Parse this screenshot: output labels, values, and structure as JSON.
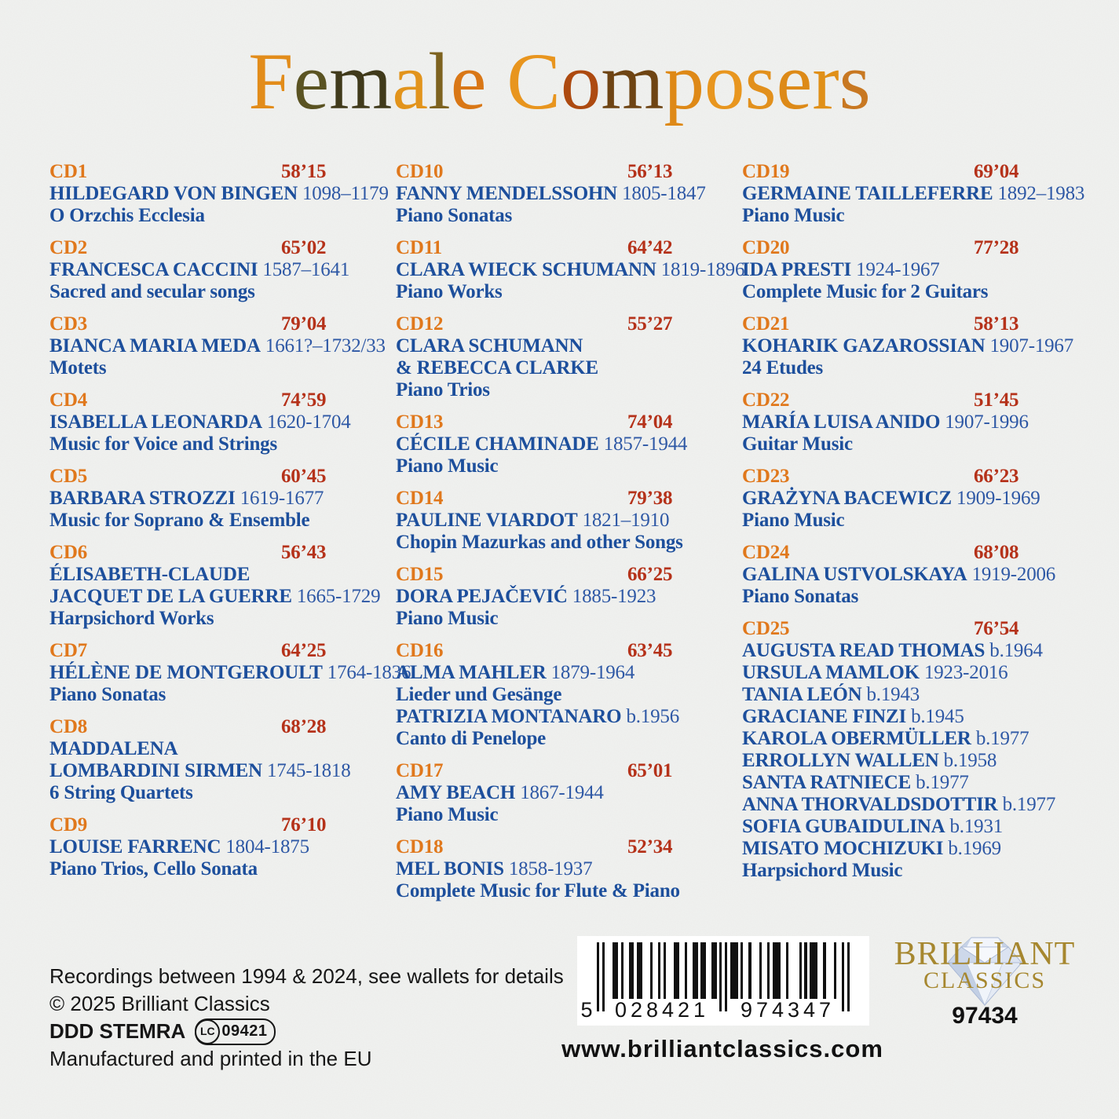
{
  "title": {
    "text": "Female Composers",
    "letter_colors": [
      "#E28C1A",
      "#5A5322",
      "#403A1B",
      "#E2941C",
      "#7D621F",
      "#D97716",
      "",
      "#E8951E",
      "#AD4A10",
      "#6E4413",
      "#DE8917",
      "#E8961F",
      "#E2901C",
      "#DD8A18",
      "#E09018",
      "#C87822"
    ]
  },
  "columns": [
    [
      {
        "num": "CD1",
        "dur": "58’15",
        "lines": [
          {
            "b": "HILDEGARD VON BINGEN",
            "r": "1098–1179"
          },
          {
            "w": "O Orzchis Ecclesia"
          }
        ]
      },
      {
        "num": "CD2",
        "dur": "65’02",
        "lines": [
          {
            "b": "FRANCESCA CACCINI",
            "r": "1587–1641"
          },
          {
            "w": "Sacred and secular songs"
          }
        ]
      },
      {
        "num": "CD3",
        "dur": "79’04",
        "lines": [
          {
            "b": "BIANCA MARIA MEDA",
            "r": "1661?–1732/33"
          },
          {
            "w": "Motets"
          }
        ]
      },
      {
        "num": "CD4",
        "dur": "74’59",
        "lines": [
          {
            "b": "ISABELLA LEONARDA",
            "r": "1620-1704"
          },
          {
            "w": "Music for Voice and Strings"
          }
        ]
      },
      {
        "num": "CD5",
        "dur": "60’45",
        "lines": [
          {
            "b": "BARBARA STROZZI",
            "r": "1619-1677"
          },
          {
            "w": "Music for Soprano & Ensemble"
          }
        ]
      },
      {
        "num": "CD6",
        "dur": "56’43",
        "lines": [
          {
            "b": "ÉLISABETH-CLAUDE"
          },
          {
            "b": "JACQUET DE LA GUERRE",
            "r": "1665-1729"
          },
          {
            "w": "Harpsichord Works"
          }
        ]
      },
      {
        "num": "CD7",
        "dur": "64’25",
        "lines": [
          {
            "b": "HÉLÈNE DE MONTGEROULT",
            "r": "1764-1836"
          },
          {
            "w": "Piano Sonatas"
          }
        ]
      },
      {
        "num": "CD8",
        "dur": "68’28",
        "lines": [
          {
            "b": "MADDALENA"
          },
          {
            "b": "LOMBARDINI SIRMEN",
            "r": "1745-1818"
          },
          {
            "w": "6 String Quartets"
          }
        ]
      },
      {
        "num": "CD9",
        "dur": "76’10",
        "lines": [
          {
            "b": "LOUISE FARRENC",
            "r": "1804-1875"
          },
          {
            "w": "Piano Trios, Cello Sonata"
          }
        ]
      }
    ],
    [
      {
        "num": "CD10",
        "dur": "56’13",
        "lines": [
          {
            "b": "FANNY MENDELSSOHN",
            "r": "1805-1847"
          },
          {
            "w": "Piano Sonatas"
          }
        ]
      },
      {
        "num": "CD11",
        "dur": "64’42",
        "lines": [
          {
            "b": "CLARA WIECK SCHUMANN",
            "r": "1819-1896"
          },
          {
            "w": "Piano Works"
          }
        ]
      },
      {
        "num": "CD12",
        "dur": "55’27",
        "lines": [
          {
            "b": "CLARA SCHUMANN"
          },
          {
            "b": "& REBECCA CLARKE"
          },
          {
            "w": "Piano Trios"
          }
        ]
      },
      {
        "num": "CD13",
        "dur": "74’04",
        "lines": [
          {
            "b": "CÉCILE CHAMINADE",
            "r": "1857-1944"
          },
          {
            "w": "Piano Music"
          }
        ]
      },
      {
        "num": "CD14",
        "dur": "79’38",
        "lines": [
          {
            "b": "PAULINE VIARDOT",
            "r": "1821–1910"
          },
          {
            "w": "Chopin Mazurkas and other Songs"
          }
        ]
      },
      {
        "num": "CD15",
        "dur": "66’25",
        "lines": [
          {
            "b": "DORA PEJAČEVIĆ",
            "r": "1885-1923"
          },
          {
            "w": "Piano Music"
          }
        ]
      },
      {
        "num": "CD16",
        "dur": "63’45",
        "lines": [
          {
            "b": "ALMA MAHLER",
            "r": "1879-1964"
          },
          {
            "w": "Lieder und Gesänge"
          },
          {
            "b": "PATRIZIA MONTANARO",
            "r": "b.1956"
          },
          {
            "w": "Canto di Penelope"
          }
        ]
      },
      {
        "num": "CD17",
        "dur": "65’01",
        "lines": [
          {
            "b": "AMY BEACH",
            "r": "1867-1944"
          },
          {
            "w": "Piano Music"
          }
        ]
      },
      {
        "num": "CD18",
        "dur": "52’34",
        "lines": [
          {
            "b": "MEL BONIS",
            "r": "1858-1937"
          },
          {
            "w": "Complete Music for Flute & Piano"
          }
        ]
      }
    ],
    [
      {
        "num": "CD19",
        "dur": "69’04",
        "lines": [
          {
            "b": "GERMAINE TAILLEFERRE",
            "r": "1892–1983"
          },
          {
            "w": "Piano Music"
          }
        ]
      },
      {
        "num": "CD20",
        "dur": "77’28",
        "lines": [
          {
            "b": "IDA PRESTI",
            "r": "1924-1967"
          },
          {
            "w": "Complete Music for 2 Guitars"
          }
        ]
      },
      {
        "num": "CD21",
        "dur": "58’13",
        "lines": [
          {
            "b": "KOHARIK GAZAROSSIAN",
            "r": "1907-1967"
          },
          {
            "w": "24 Etudes"
          }
        ]
      },
      {
        "num": "CD22",
        "dur": "51’45",
        "lines": [
          {
            "b": "MARÍA LUISA ANIDO",
            "r": "1907-1996"
          },
          {
            "w": "Guitar Music"
          }
        ]
      },
      {
        "num": "CD23",
        "dur": "66’23",
        "lines": [
          {
            "b": "GRAŻYNA BACEWICZ",
            "r": "1909-1969"
          },
          {
            "w": "Piano Music"
          }
        ]
      },
      {
        "num": "CD24",
        "dur": "68’08",
        "lines": [
          {
            "b": "GALINA USTVOLSKAYA",
            "r": "1919-2006"
          },
          {
            "w": "Piano Sonatas"
          }
        ]
      },
      {
        "num": "CD25",
        "dur": "76’54",
        "lines": [
          {
            "b": "AUGUSTA READ THOMAS",
            "r": "b.1964"
          },
          {
            "b": "URSULA MAMLOK",
            "r": "1923-2016"
          },
          {
            "b": "TANIA LEÓN",
            "r": "b.1943"
          },
          {
            "b": "GRACIANE FINZI",
            "r": "b.1945"
          },
          {
            "b": "KAROLA OBERMÜLLER",
            "r": "b.1977"
          },
          {
            "b": "ERROLLYN WALLEN",
            "r": "b.1958"
          },
          {
            "b": "SANTA RATNIECE",
            "r": "b.1977"
          },
          {
            "b": "ANNA THORVALDSDOTTIR",
            "r": "b.1977"
          },
          {
            "b": "SOFIA GUBAIDULINA",
            "r": "b.1931"
          },
          {
            "b": "MISATO MOCHIZUKI",
            "r": "b.1969"
          },
          {
            "w": "Harpsichord Music"
          }
        ]
      }
    ]
  ],
  "footer": {
    "line1": "Recordings between 1994 & 2024, see wallets for details",
    "line2": "© 2025 Brilliant Classics",
    "line3_bold": "DDD STEMRA",
    "lc_label": "LC",
    "lc_number": "09421",
    "line4": "Manufactured and printed in the EU",
    "website": "www.brilliantclassics.com"
  },
  "barcode": {
    "digit_first": "5",
    "digits_left": "028421",
    "digits_right": "974347",
    "groups": [
      {
        "m": "101",
        "g": true
      },
      {
        "m": "0001101"
      },
      {
        "m": "0011011"
      },
      {
        "m": "0001001"
      },
      {
        "m": "0100011"
      },
      {
        "m": "0010011"
      },
      {
        "m": "0110011"
      },
      {
        "m": "01010",
        "g": true
      },
      {
        "m": "1110100"
      },
      {
        "m": "1000100"
      },
      {
        "m": "1011100"
      },
      {
        "m": "1000010"
      },
      {
        "m": "1011100"
      },
      {
        "m": "1000100"
      },
      {
        "m": "101",
        "g": true
      }
    ]
  },
  "logo": {
    "line1": "BRILLIANT",
    "line2": "CLASSICS",
    "catalog": "97434"
  },
  "colors": {
    "background": "#ecedeb",
    "cd_number_orange": "#E0781C",
    "duration_red": "#B5321A",
    "name_blue": "#1D4F9C",
    "dates_blue": "#2E58A5",
    "logo_gold": "#A6872F",
    "footer_black": "#161616"
  }
}
